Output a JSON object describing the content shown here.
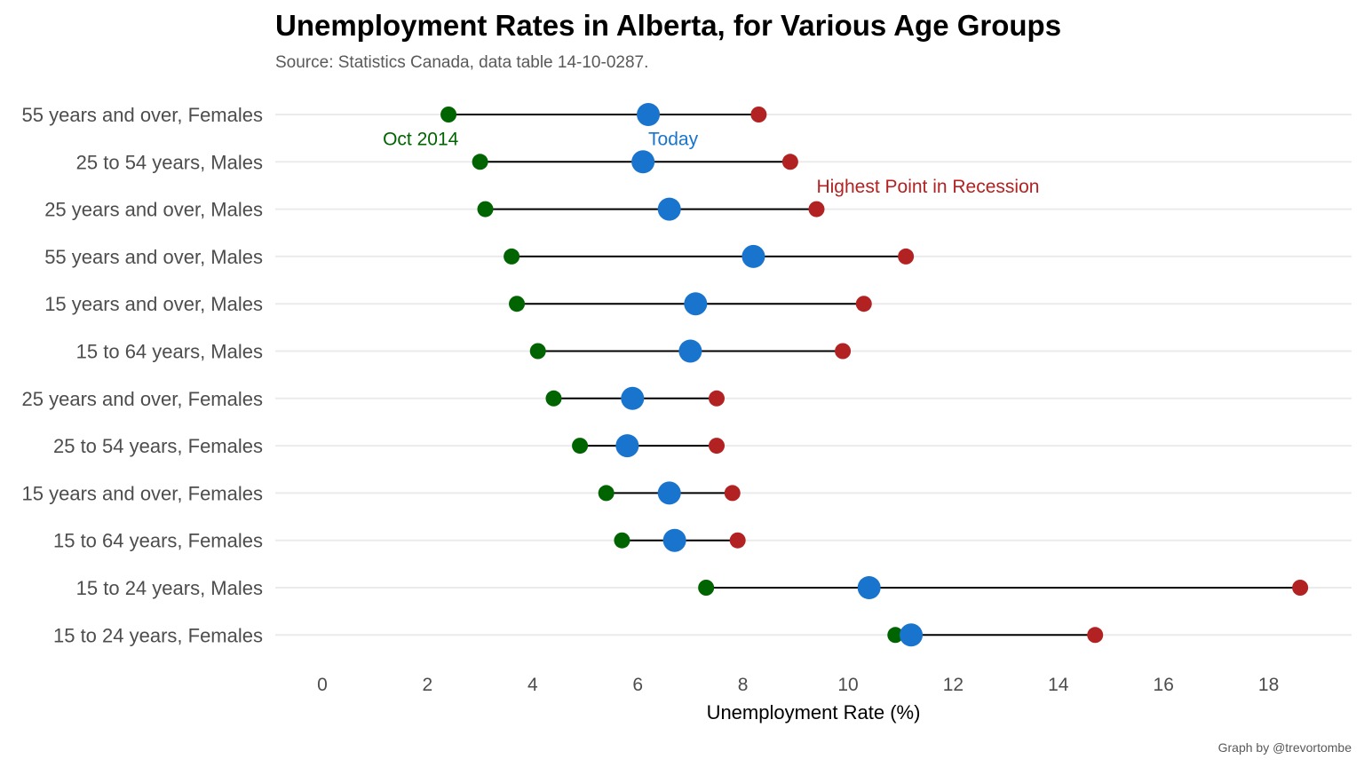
{
  "chart_data": {
    "type": "scatter",
    "title": "Unemployment Rates in Alberta, for Various Age Groups",
    "subtitle": "Source: Statistics Canada, data table 14-10-0287.",
    "caption": "Graph by @trevortombe",
    "xlabel": "Unemployment Rate (%)",
    "ylabel": "",
    "xlim": [
      0,
      19
    ],
    "x_ticks": [
      0,
      2,
      4,
      6,
      8,
      10,
      12,
      14,
      16,
      18
    ],
    "grid": "horizontal",
    "categories": [
      "55 years and over, Females",
      "25 to 54 years, Males",
      "25 years and over, Males",
      "55 years and over, Males",
      "15 years and over, Males",
      "15 to 64 years, Males",
      "25 years and over, Females",
      "25 to 54 years, Females",
      "15 years and over, Females",
      "15 to 64 years, Females",
      "15 to 24 years, Males",
      "15 to 24 years, Females"
    ],
    "series": [
      {
        "name": "Oct 2014",
        "color": "#006400",
        "values": [
          2.4,
          3.0,
          3.1,
          3.6,
          3.7,
          4.1,
          4.4,
          4.9,
          5.4,
          5.7,
          7.3,
          10.9
        ]
      },
      {
        "name": "Today",
        "color": "#1874CD",
        "values": [
          6.2,
          6.1,
          6.6,
          8.2,
          7.1,
          7.0,
          5.9,
          5.8,
          6.6,
          6.7,
          10.4,
          11.2
        ]
      },
      {
        "name": "Highest Point in Recession",
        "color": "#B22222",
        "values": [
          8.3,
          8.9,
          9.4,
          11.1,
          10.3,
          9.9,
          7.5,
          7.5,
          7.8,
          7.9,
          18.6,
          14.7
        ]
      }
    ],
    "annotations": [
      {
        "text": "Oct 2014",
        "color": "#006400",
        "x": 1.15,
        "between_rows": [
          0,
          1
        ]
      },
      {
        "text": "Today",
        "color": "#1874CD",
        "x": 6.2,
        "between_rows": [
          0,
          1
        ]
      },
      {
        "text": "Highest Point in Recession",
        "color": "#B22222",
        "x": 9.4,
        "between_rows": [
          1,
          2
        ]
      }
    ]
  }
}
